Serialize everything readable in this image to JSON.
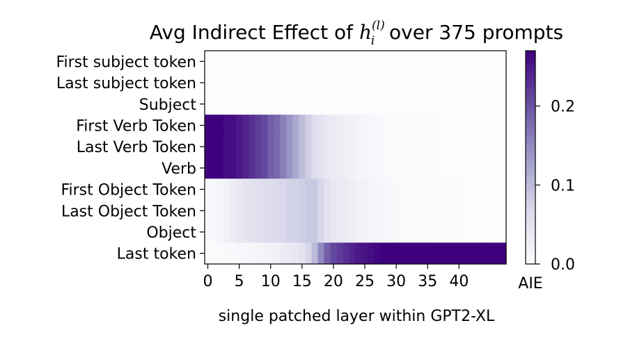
{
  "chart_data": {
    "type": "heatmap",
    "title": {
      "prefix": "Avg Indirect Effect of ",
      "math_base": "h",
      "math_sub": "i",
      "math_sup": "(l)",
      "suffix": " over 375 prompts"
    },
    "xlabel": "single patched layer within GPT2-XL",
    "x_tick_labels": [
      "0",
      "5",
      "10",
      "15",
      "20",
      "25",
      "30",
      "35",
      "40"
    ],
    "x_ticks": [
      0,
      5,
      10,
      15,
      20,
      25,
      30,
      35,
      40
    ],
    "n_layers": 48,
    "rows": [
      "First subject token",
      "Last subject token",
      "Subject",
      "First Verb Token",
      "Last Verb Token",
      "Verb",
      "First Object Token",
      "Last Object Token",
      "Object",
      "Last token"
    ],
    "colormap": "Purples",
    "colorbar": {
      "label": "AIE",
      "range": [
        0,
        0.27
      ],
      "tick_labels": [
        "0.0",
        "0.1",
        "0.2"
      ],
      "ticks": [
        0,
        0.1,
        0.2
      ]
    },
    "values": [
      [
        0,
        0,
        0,
        0,
        0,
        0,
        0,
        0,
        0,
        0,
        0,
        0,
        0,
        0,
        0,
        0,
        0,
        0,
        0,
        0,
        0,
        0,
        0,
        0,
        0,
        0,
        0,
        0,
        0,
        0,
        0,
        0,
        0,
        0,
        0,
        0,
        0,
        0,
        0,
        0,
        0,
        0,
        0,
        0,
        0,
        0,
        0,
        0
      ],
      [
        0,
        0,
        0,
        0,
        0,
        0,
        0,
        0,
        0,
        0,
        0,
        0,
        0,
        0,
        0,
        0,
        0,
        0,
        0,
        0,
        0,
        0,
        0,
        0,
        0,
        0,
        0,
        0,
        0,
        0,
        0,
        0,
        0,
        0,
        0,
        0,
        0,
        0,
        0,
        0,
        0,
        0,
        0,
        0,
        0,
        0,
        0,
        0
      ],
      [
        0,
        0,
        0,
        0,
        0,
        0,
        0,
        0,
        0,
        0,
        0,
        0,
        0,
        0,
        0,
        0,
        0,
        0,
        0,
        0,
        0,
        0,
        0,
        0,
        0,
        0,
        0,
        0,
        0,
        0,
        0,
        0,
        0,
        0,
        0,
        0,
        0,
        0,
        0,
        0,
        0,
        0,
        0,
        0,
        0,
        0,
        0,
        0
      ],
      [
        0.27,
        0.27,
        0.27,
        0.26,
        0.26,
        0.25,
        0.24,
        0.23,
        0.22,
        0.21,
        0.19,
        0.18,
        0.16,
        0.14,
        0.12,
        0.1,
        0.08,
        0.06,
        0.05,
        0.04,
        0.035,
        0.03,
        0.025,
        0.02,
        0.015,
        0.012,
        0.01,
        0.008,
        0.006,
        0.004,
        0.003,
        0.002,
        0.002,
        0.001,
        0.001,
        0.001,
        0.001,
        0,
        0,
        0,
        0,
        0,
        0,
        0,
        0,
        0,
        0,
        0
      ],
      [
        0.27,
        0.27,
        0.27,
        0.26,
        0.26,
        0.25,
        0.24,
        0.23,
        0.22,
        0.21,
        0.19,
        0.18,
        0.16,
        0.14,
        0.12,
        0.1,
        0.08,
        0.06,
        0.05,
        0.04,
        0.035,
        0.03,
        0.025,
        0.02,
        0.015,
        0.012,
        0.01,
        0.008,
        0.006,
        0.004,
        0.003,
        0.002,
        0.002,
        0.001,
        0.001,
        0.001,
        0.001,
        0,
        0,
        0,
        0,
        0,
        0,
        0,
        0,
        0,
        0,
        0
      ],
      [
        0.27,
        0.27,
        0.27,
        0.26,
        0.26,
        0.25,
        0.24,
        0.23,
        0.22,
        0.21,
        0.19,
        0.18,
        0.16,
        0.14,
        0.12,
        0.1,
        0.08,
        0.06,
        0.05,
        0.04,
        0.035,
        0.03,
        0.025,
        0.02,
        0.015,
        0.012,
        0.01,
        0.008,
        0.006,
        0.004,
        0.003,
        0.002,
        0.002,
        0.001,
        0.001,
        0.001,
        0.001,
        0,
        0,
        0,
        0,
        0,
        0,
        0,
        0,
        0,
        0,
        0
      ],
      [
        0.005,
        0.01,
        0.015,
        0.02,
        0.03,
        0.04,
        0.045,
        0.05,
        0.055,
        0.06,
        0.06,
        0.065,
        0.07,
        0.075,
        0.075,
        0.08,
        0.085,
        0.085,
        0.07,
        0.05,
        0.04,
        0.035,
        0.03,
        0.025,
        0.02,
        0.018,
        0.015,
        0.012,
        0.01,
        0.008,
        0.006,
        0.005,
        0.004,
        0.003,
        0.003,
        0.002,
        0.002,
        0.002,
        0.001,
        0.001,
        0.001,
        0,
        0,
        0,
        0,
        0,
        0,
        0
      ],
      [
        0.005,
        0.01,
        0.015,
        0.02,
        0.03,
        0.04,
        0.045,
        0.05,
        0.055,
        0.06,
        0.06,
        0.065,
        0.07,
        0.075,
        0.075,
        0.08,
        0.085,
        0.085,
        0.07,
        0.05,
        0.04,
        0.035,
        0.03,
        0.025,
        0.02,
        0.018,
        0.015,
        0.012,
        0.01,
        0.008,
        0.006,
        0.005,
        0.004,
        0.003,
        0.003,
        0.002,
        0.002,
        0.002,
        0.001,
        0.001,
        0.001,
        0,
        0,
        0,
        0,
        0,
        0,
        0
      ],
      [
        0.005,
        0.01,
        0.015,
        0.02,
        0.03,
        0.04,
        0.045,
        0.05,
        0.055,
        0.06,
        0.06,
        0.065,
        0.07,
        0.075,
        0.075,
        0.08,
        0.085,
        0.085,
        0.07,
        0.05,
        0.04,
        0.035,
        0.03,
        0.025,
        0.02,
        0.018,
        0.015,
        0.012,
        0.01,
        0.008,
        0.006,
        0.005,
        0.004,
        0.003,
        0.003,
        0.002,
        0.002,
        0.002,
        0.001,
        0.001,
        0.001,
        0,
        0,
        0,
        0,
        0,
        0,
        0
      ],
      [
        0.003,
        0.003,
        0.004,
        0.005,
        0.006,
        0.008,
        0.01,
        0.012,
        0.015,
        0.018,
        0.02,
        0.025,
        0.03,
        0.035,
        0.04,
        0.05,
        0.07,
        0.1,
        0.15,
        0.19,
        0.21,
        0.22,
        0.23,
        0.24,
        0.25,
        0.255,
        0.26,
        0.265,
        0.27,
        0.27,
        0.27,
        0.27,
        0.27,
        0.27,
        0.27,
        0.27,
        0.27,
        0.27,
        0.27,
        0.27,
        0.27,
        0.27,
        0.27,
        0.27,
        0.27,
        0.27,
        0.27,
        0.27
      ]
    ]
  }
}
